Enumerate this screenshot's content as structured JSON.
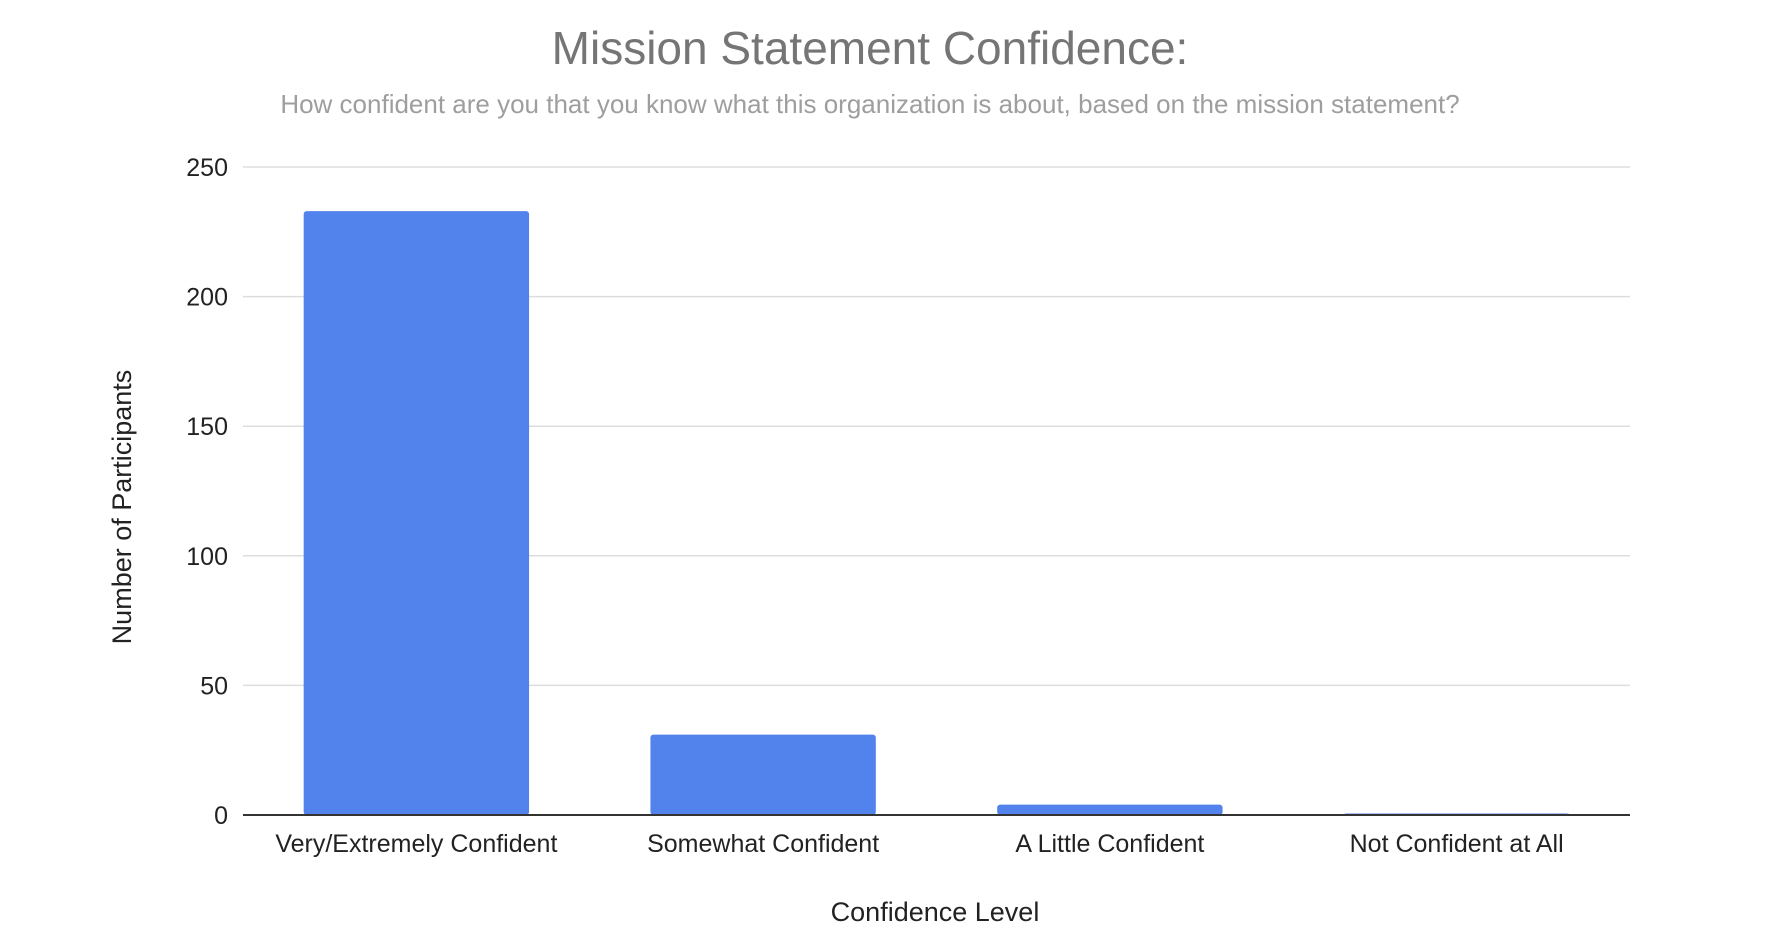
{
  "chart_data": {
    "type": "bar",
    "title": "Mission Statement Confidence:",
    "subtitle": "How confident are you that you know what this organization is about, based on the mission statement?",
    "xlabel": "Confidence Level",
    "ylabel": "Number of Participants",
    "categories": [
      "Very/Extremely Confident",
      "Somewhat Confident",
      "A Little Confident",
      "Not Confident at All"
    ],
    "values": [
      233,
      31,
      4,
      0.5
    ],
    "ylim": [
      0,
      250
    ],
    "yticks": [
      0,
      50,
      100,
      150,
      200,
      250
    ],
    "grid": true,
    "legend": "none",
    "colors": {
      "bar": "#5282ec",
      "grid": "#dddddd",
      "baseline": "#333333"
    }
  }
}
